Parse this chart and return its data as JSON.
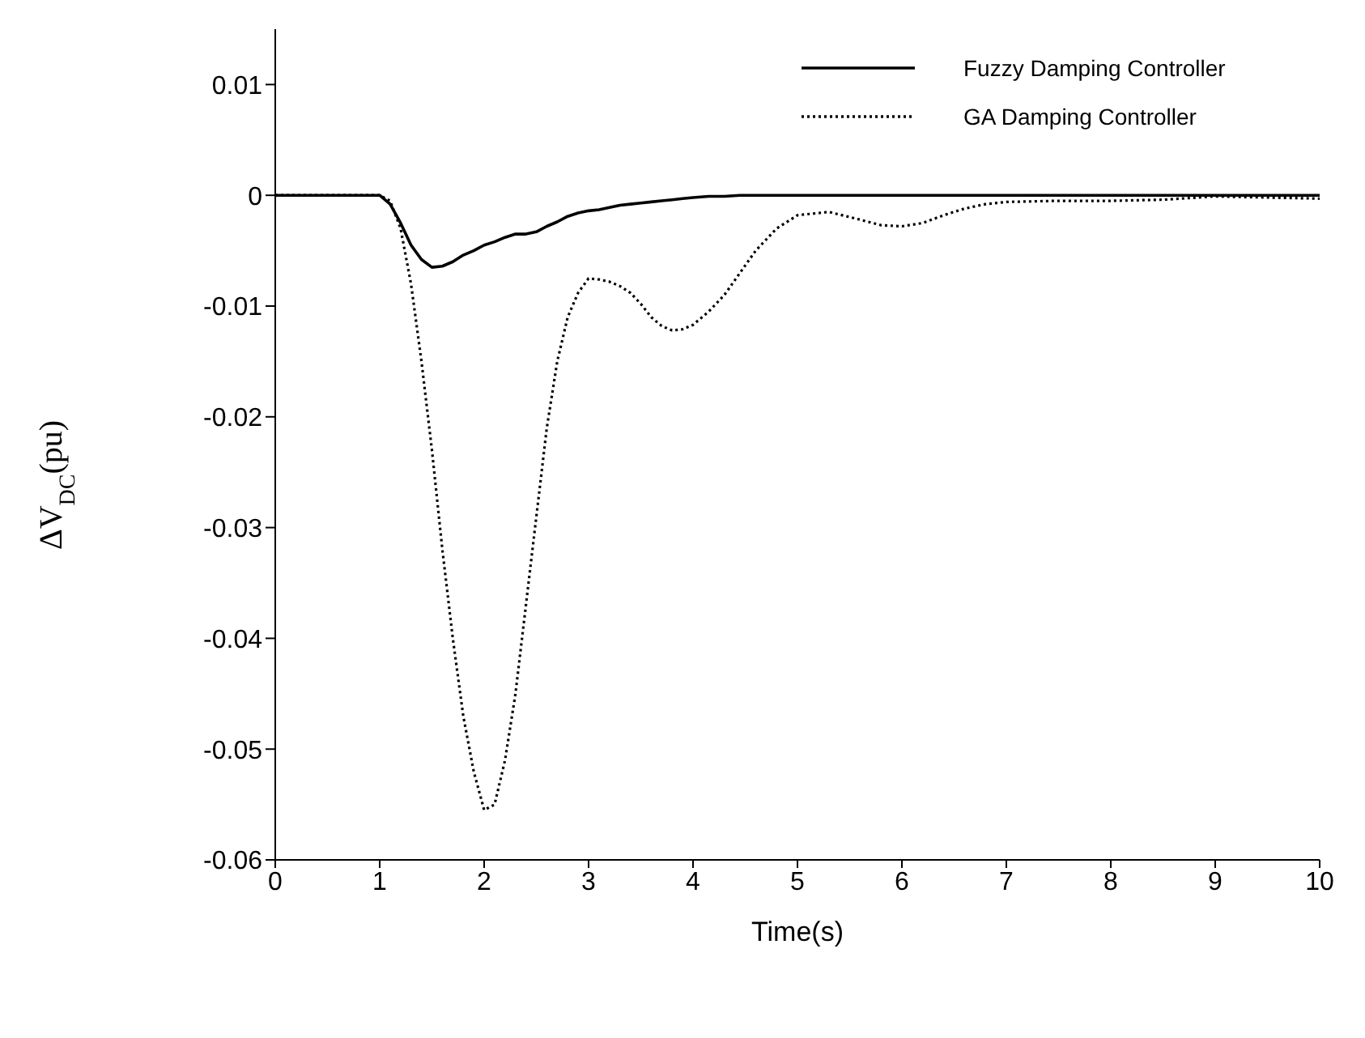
{
  "chart_data": {
    "type": "line",
    "xlabel": "Time(s)",
    "ylabel": "ΔV$_{DC}$(pu)",
    "xlim": [
      0,
      10
    ],
    "xticks": [
      0,
      1,
      2,
      3,
      4,
      5,
      6,
      7,
      8,
      9,
      10
    ],
    "ylim": [
      -0.06,
      0.015
    ],
    "yticks": [
      -0.06,
      -0.05,
      -0.04,
      -0.03,
      -0.02,
      -0.01,
      0,
      0.01
    ],
    "grid": false,
    "legend": "top right",
    "marker": "none",
    "x": [
      0,
      0.5,
      1.0,
      1.1,
      1.2,
      1.3,
      1.4,
      1.5,
      1.6,
      1.7,
      1.8,
      1.9,
      2.0,
      2.1,
      2.2,
      2.3,
      2.4,
      2.5,
      2.6,
      2.7,
      2.8,
      2.9,
      3.0,
      3.1,
      3.2,
      3.3,
      3.4,
      3.5,
      3.6,
      3.7,
      3.8,
      3.9,
      4.0,
      4.15,
      4.3,
      4.45,
      4.6,
      4.8,
      5.0,
      5.3,
      5.6,
      5.8,
      6.0,
      6.2,
      6.4,
      6.6,
      6.8,
      7.0,
      7.5,
      8.0,
      8.5,
      9.0,
      9.5,
      10.0
    ],
    "series": [
      {
        "name": "Fuzzy Damping Controller",
        "color": "#000000",
        "line_style": "solid",
        "values": [
          0,
          0,
          0,
          -0.0008,
          -0.0025,
          -0.0045,
          -0.0058,
          -0.0065,
          -0.0064,
          -0.006,
          -0.0054,
          -0.005,
          -0.0045,
          -0.0042,
          -0.0038,
          -0.0035,
          -0.0035,
          -0.0033,
          -0.0028,
          -0.0024,
          -0.0019,
          -0.0016,
          -0.0014,
          -0.0013,
          -0.0011,
          -0.0009,
          -0.0008,
          -0.0007,
          -0.0006,
          -0.0005,
          -0.0004,
          -0.0003,
          -0.0002,
          -0.0001,
          -0.0001,
          0,
          0,
          0,
          0,
          0,
          0,
          0,
          0,
          0,
          0,
          0,
          0,
          0,
          0,
          0,
          0,
          0,
          0,
          0
        ]
      },
      {
        "name": "GA Damping Controller",
        "color": "#000000",
        "line_style": "dotted",
        "values": [
          0,
          0,
          0,
          -0.0005,
          -0.003,
          -0.008,
          -0.015,
          -0.023,
          -0.032,
          -0.04,
          -0.047,
          -0.052,
          -0.0555,
          -0.055,
          -0.051,
          -0.045,
          -0.037,
          -0.029,
          -0.021,
          -0.015,
          -0.011,
          -0.0088,
          -0.0075,
          -0.0076,
          -0.0078,
          -0.0082,
          -0.0088,
          -0.0098,
          -0.011,
          -0.0118,
          -0.0122,
          -0.0121,
          -0.0117,
          -0.0105,
          -0.009,
          -0.007,
          -0.005,
          -0.003,
          -0.0018,
          -0.0015,
          -0.0022,
          -0.0027,
          -0.0028,
          -0.0025,
          -0.0018,
          -0.0012,
          -0.0008,
          -0.0006,
          -0.0005,
          -0.0005,
          -0.0004,
          -0.0001,
          -0.0002,
          -0.0003
        ]
      }
    ]
  }
}
